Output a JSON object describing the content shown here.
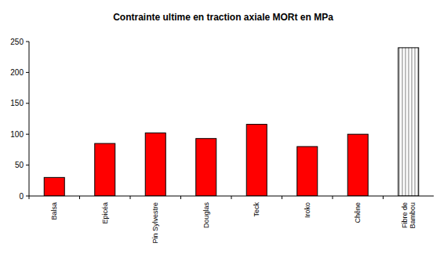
{
  "chart_data": {
    "type": "bar",
    "title": "Contrainte ultime en traction axiale MORt en MPa",
    "categories": [
      "Balsa",
      "Epicéa",
      "Pin Sylvestre",
      "Douglas",
      "Teck",
      "Iroko",
      "Chêne",
      "Fibre de Bambou"
    ],
    "values": [
      30,
      85,
      102,
      93,
      116,
      80,
      100,
      240
    ],
    "colors": [
      "#ff0000",
      "#ff0000",
      "#ff0000",
      "#ff0000",
      "#ff0000",
      "#ff0000",
      "#ff0000",
      "#ffffff"
    ],
    "ylim": [
      0,
      250
    ],
    "yticks": [
      0,
      50,
      100,
      150,
      200,
      250
    ],
    "grid": false
  }
}
